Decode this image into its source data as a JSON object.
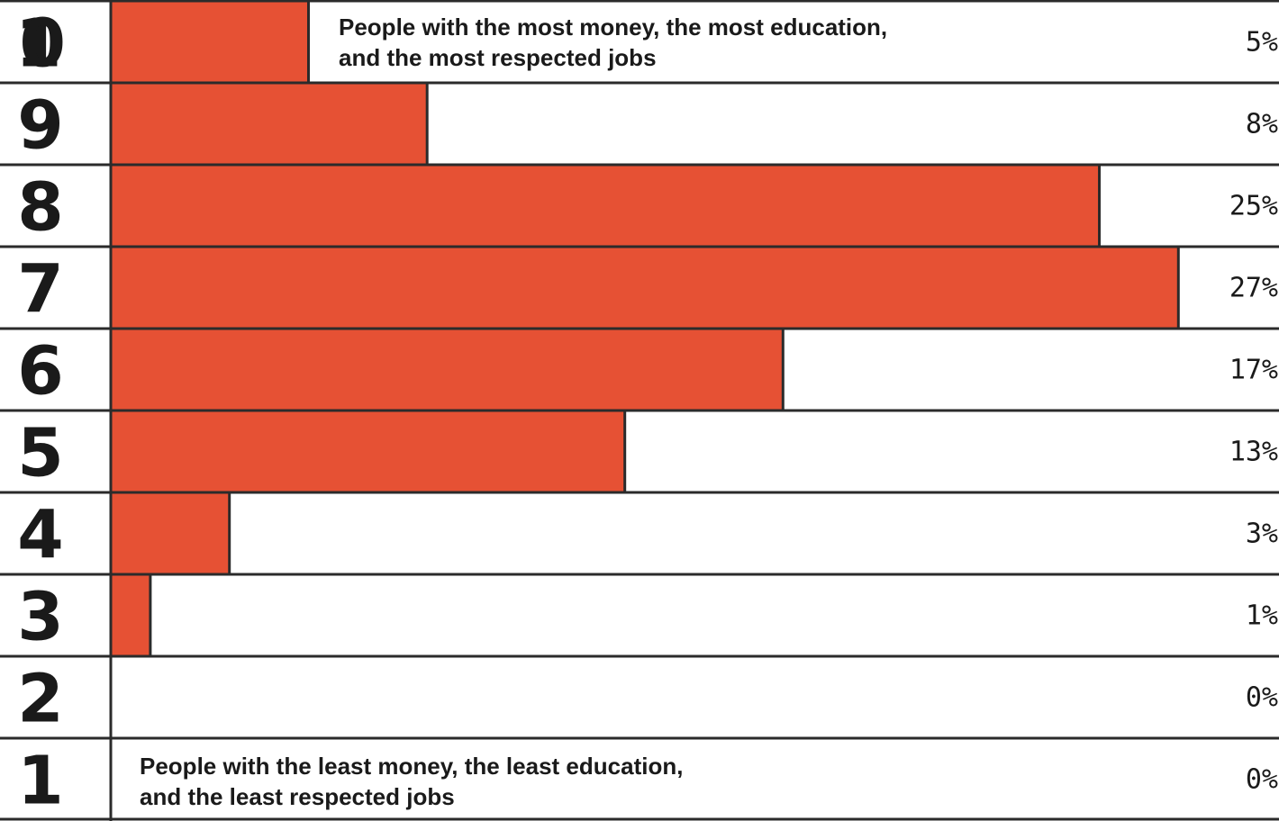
{
  "chart_data": {
    "type": "bar",
    "orientation": "horizontal",
    "categories": [
      "10",
      "9",
      "8",
      "7",
      "6",
      "5",
      "4",
      "3",
      "2",
      "1"
    ],
    "values": [
      5,
      8,
      25,
      27,
      17,
      13,
      3,
      1,
      0,
      0
    ],
    "value_labels": [
      "5%",
      "8%",
      "25%",
      "27%",
      "17%",
      "13%",
      "3%",
      "1%",
      "0%",
      "0%"
    ],
    "xlim": [
      0,
      29
    ],
    "annotations": {
      "top": [
        "People with the most money, the most education,",
        "and the most respected jobs"
      ],
      "bottom": [
        "People with the least money, the least education,",
        "and the least respected jobs"
      ]
    },
    "colors": {
      "bar": "#e65134",
      "line": "#2b2b2b",
      "text": "#1a1a1a",
      "background": "#ffffff"
    }
  }
}
